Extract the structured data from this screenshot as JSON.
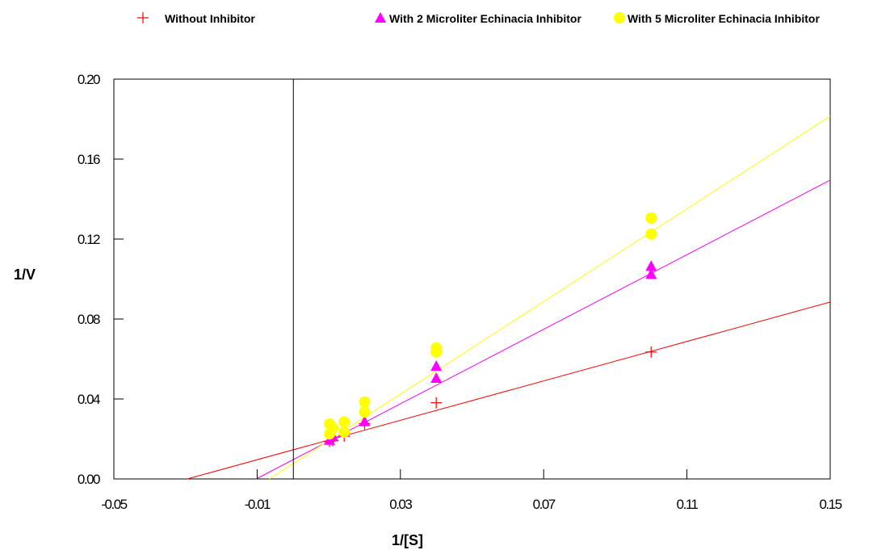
{
  "chart_data": {
    "type": "scatter",
    "title": "",
    "xlabel": "1/[S]",
    "ylabel": "1/V",
    "xlim": [
      -0.05,
      0.15
    ],
    "ylim": [
      0.0,
      0.2
    ],
    "xtick_labels": [
      "-0.05",
      "-0.01",
      "0.03",
      "0.07",
      "0.11",
      "0.15"
    ],
    "ytick_labels": [
      "0.00",
      "0.04",
      "0.08",
      "0.12",
      "0.16",
      "0.20"
    ],
    "grid": false,
    "legend_position": "top",
    "zero_line_x": 0,
    "series": [
      {
        "name": "Without Inhibitor",
        "marker": "plus",
        "color": "#ff0000",
        "points": [
          [
            0.0102,
            0.0188
          ],
          [
            0.0111,
            0.0191
          ],
          [
            0.0143,
            0.0214
          ],
          [
            0.02,
            0.0276
          ],
          [
            0.04,
            0.0381
          ],
          [
            0.1,
            0.0635
          ]
        ],
        "fit_line": [
          [
            -0.0295,
            0.0
          ],
          [
            0.15,
            0.0885
          ]
        ]
      },
      {
        "name": "With 2 Microliter Echinacia Inhibitor",
        "marker": "triangle",
        "color": "#ff00ff",
        "points": [
          [
            0.0102,
            0.0195
          ],
          [
            0.0111,
            0.0215
          ],
          [
            0.0143,
            0.0235
          ],
          [
            0.02,
            0.0288
          ],
          [
            0.04,
            0.0505
          ],
          [
            0.04,
            0.0565
          ],
          [
            0.1,
            0.1025
          ],
          [
            0.1,
            0.1065
          ]
        ],
        "fit_line": [
          [
            -0.0103,
            0.0
          ],
          [
            0.15,
            0.1495
          ]
        ]
      },
      {
        "name": "With 5 Microliter Echinacia Inhibitor",
        "marker": "circle",
        "color": "#ffff00",
        "points": [
          [
            0.0102,
            0.0225
          ],
          [
            0.0102,
            0.0275
          ],
          [
            0.0111,
            0.0255
          ],
          [
            0.0143,
            0.0235
          ],
          [
            0.0143,
            0.0285
          ],
          [
            0.02,
            0.0335
          ],
          [
            0.02,
            0.0385
          ],
          [
            0.04,
            0.0635
          ],
          [
            0.04,
            0.0655
          ],
          [
            0.1,
            0.1225
          ],
          [
            0.1,
            0.1305
          ]
        ],
        "fit_line": [
          [
            -0.0066,
            0.0
          ],
          [
            0.15,
            0.1815
          ]
        ]
      }
    ]
  }
}
